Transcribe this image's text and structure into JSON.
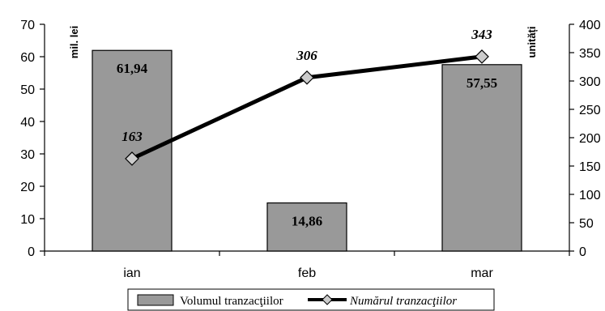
{
  "chart_data": {
    "type": "bar",
    "categories": [
      "ian",
      "feb",
      "mar"
    ],
    "y_left": {
      "label": "mil. lei",
      "lim": [
        0,
        70
      ],
      "ticks": [
        0,
        10,
        20,
        30,
        40,
        50,
        60,
        70
      ]
    },
    "y_right": {
      "label": "unități",
      "lim": [
        0,
        400
      ],
      "ticks": [
        0,
        50,
        100,
        150,
        200,
        250,
        300,
        350,
        400
      ]
    },
    "series": [
      {
        "name": "Volumul tranzacţiilor",
        "type": "bar",
        "axis": "left",
        "values": [
          61.94,
          14.86,
          57.55
        ],
        "labels": [
          "61,94",
          "14,86",
          "57,55"
        ],
        "color": "#999999"
      },
      {
        "name": "Numărul tranzacţiilor",
        "type": "line",
        "axis": "right",
        "values": [
          163,
          306,
          343
        ],
        "labels": [
          "163",
          "306",
          "343"
        ],
        "color": "#000000",
        "marker": "diamond",
        "marker_color": "#cccccc"
      }
    ],
    "grid": false,
    "legend_position": "bottom"
  }
}
